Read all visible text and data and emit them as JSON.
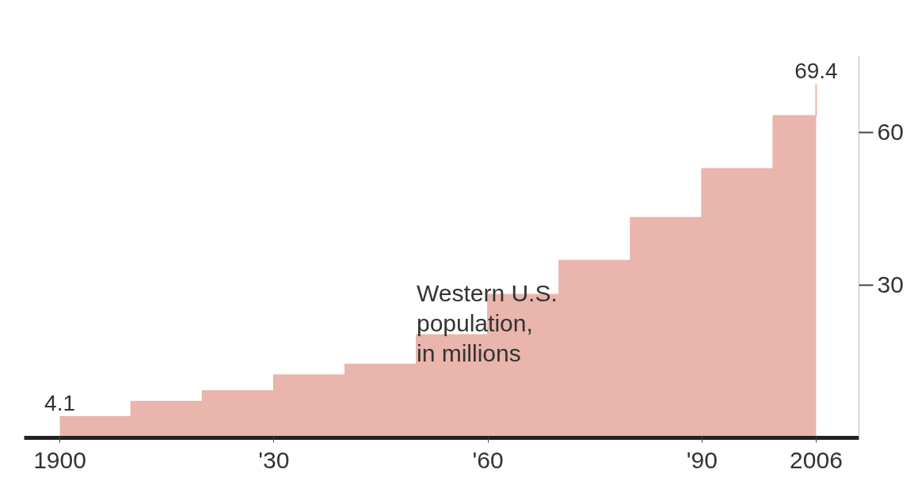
{
  "chart_data": {
    "type": "area",
    "title": "Western U.S.\npopulation,\nin millions",
    "x": [
      1900,
      1910,
      1910,
      1920,
      1920,
      1930,
      1930,
      1940,
      1940,
      1950,
      1950,
      1960,
      1960,
      1970,
      1970,
      1980,
      1980,
      1990,
      1990,
      2000,
      2000,
      2006,
      2006
    ],
    "values": [
      4.1,
      4.1,
      7.1,
      7.1,
      9.2,
      9.2,
      12.3,
      12.3,
      14.4,
      14.4,
      20.2,
      20.2,
      28.1,
      28.1,
      34.8,
      34.8,
      43.2,
      43.2,
      52.8,
      52.8,
      63.2,
      63.2,
      69.4
    ],
    "value_labels": [
      "4.1",
      null,
      null,
      null,
      null,
      null,
      null,
      null,
      null,
      null,
      null,
      null,
      null,
      null,
      null,
      null,
      null,
      null,
      null,
      null,
      null,
      null,
      "69.4"
    ],
    "color": "#e9b5ad",
    "xlim": [
      1895,
      2012
    ],
    "xticks": [
      1900,
      {
        "value": 1930,
        "label": "'30"
      },
      {
        "value": 1960,
        "label": "'60"
      },
      {
        "value": 1990,
        "label": "'90"
      },
      2006
    ],
    "ylim": [
      0,
      75
    ],
    "yticks": [
      30,
      60
    ],
    "grid": false
  }
}
